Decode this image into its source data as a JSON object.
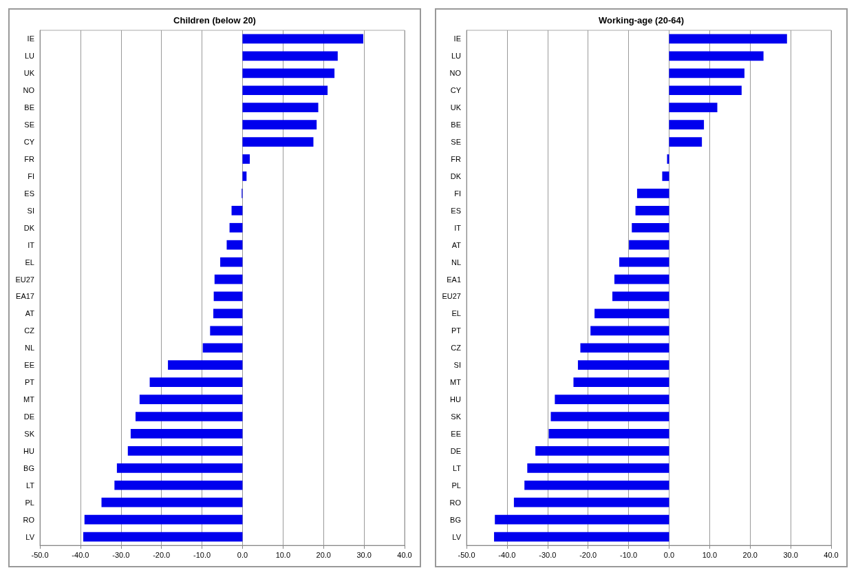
{
  "chart_data": [
    {
      "type": "bar",
      "title": "Children (below 20)",
      "orientation": "horizontal",
      "color": "#0000ee",
      "grid": "x",
      "categories": [
        "IE",
        "LU",
        "UK",
        "NO",
        "BE",
        "SE",
        "CY",
        "FR",
        "FI",
        "ES",
        "SI",
        "DK",
        "IT",
        "EL",
        "EU27",
        "EA17",
        "AT",
        "CZ",
        "NL",
        "EE",
        "PT",
        "MT",
        "DE",
        "SK",
        "HU",
        "BG",
        "LT",
        "PL",
        "RO",
        "LV"
      ],
      "values": [
        29.8,
        23.5,
        22.7,
        21.0,
        18.7,
        18.3,
        17.5,
        1.8,
        1.0,
        -0.2,
        -2.7,
        -3.2,
        -3.9,
        -5.5,
        -6.9,
        -7.1,
        -7.2,
        -8.0,
        -9.8,
        -18.4,
        -22.9,
        -25.4,
        -26.4,
        -27.6,
        -28.3,
        -31.0,
        -31.6,
        -34.8,
        -39.0,
        -39.3
      ],
      "xlim": [
        -50,
        40
      ],
      "xticks": [
        {
          "value": -50,
          "label": "-50.0"
        },
        {
          "value": -40,
          "label": "-40.0"
        },
        {
          "value": -30,
          "label": "-30.0"
        },
        {
          "value": -20,
          "label": "-20.0"
        },
        {
          "value": -10,
          "label": "-10.0"
        },
        {
          "value": 0,
          "label": "0.0"
        },
        {
          "value": 10,
          "label": "10.0"
        },
        {
          "value": 20,
          "label": "20.0"
        },
        {
          "value": 30,
          "label": "30.0"
        },
        {
          "value": 40,
          "label": "40.0"
        }
      ]
    },
    {
      "type": "bar",
      "title": "Working-age (20-64)",
      "orientation": "horizontal",
      "color": "#0000ee",
      "grid": "x",
      "categories": [
        "IE",
        "LU",
        "NO",
        "CY",
        "UK",
        "BE",
        "SE",
        "FR",
        "DK",
        "FI",
        "ES",
        "IT",
        "AT",
        "NL",
        "EA1",
        "EU27",
        "EL",
        "PT",
        "CZ",
        "SI",
        "MT",
        "HU",
        "SK",
        "EE",
        "DE",
        "LT",
        "PL",
        "RO",
        "BG",
        "LV"
      ],
      "values": [
        29.1,
        23.3,
        18.6,
        17.9,
        11.9,
        8.6,
        8.1,
        -0.5,
        -1.7,
        -7.9,
        -8.3,
        -9.2,
        -9.9,
        -12.3,
        -13.5,
        -14.0,
        -18.4,
        -19.4,
        -21.9,
        -22.5,
        -23.6,
        -28.2,
        -29.2,
        -29.7,
        -33.0,
        -35.0,
        -35.7,
        -38.3,
        -43.0,
        -43.2
      ],
      "xlim": [
        -50,
        40
      ],
      "xticks": [
        {
          "value": -50,
          "label": "-50.0"
        },
        {
          "value": -40,
          "label": "-40.0"
        },
        {
          "value": -30,
          "label": "-30.0"
        },
        {
          "value": -20,
          "label": "-20.0"
        },
        {
          "value": -10,
          "label": "-10.0"
        },
        {
          "value": 0,
          "label": "0.0"
        },
        {
          "value": 10,
          "label": "10.0"
        },
        {
          "value": 20,
          "label": "20.0"
        },
        {
          "value": 30,
          "label": "30.0"
        },
        {
          "value": 40,
          "label": "40.0"
        }
      ]
    }
  ]
}
